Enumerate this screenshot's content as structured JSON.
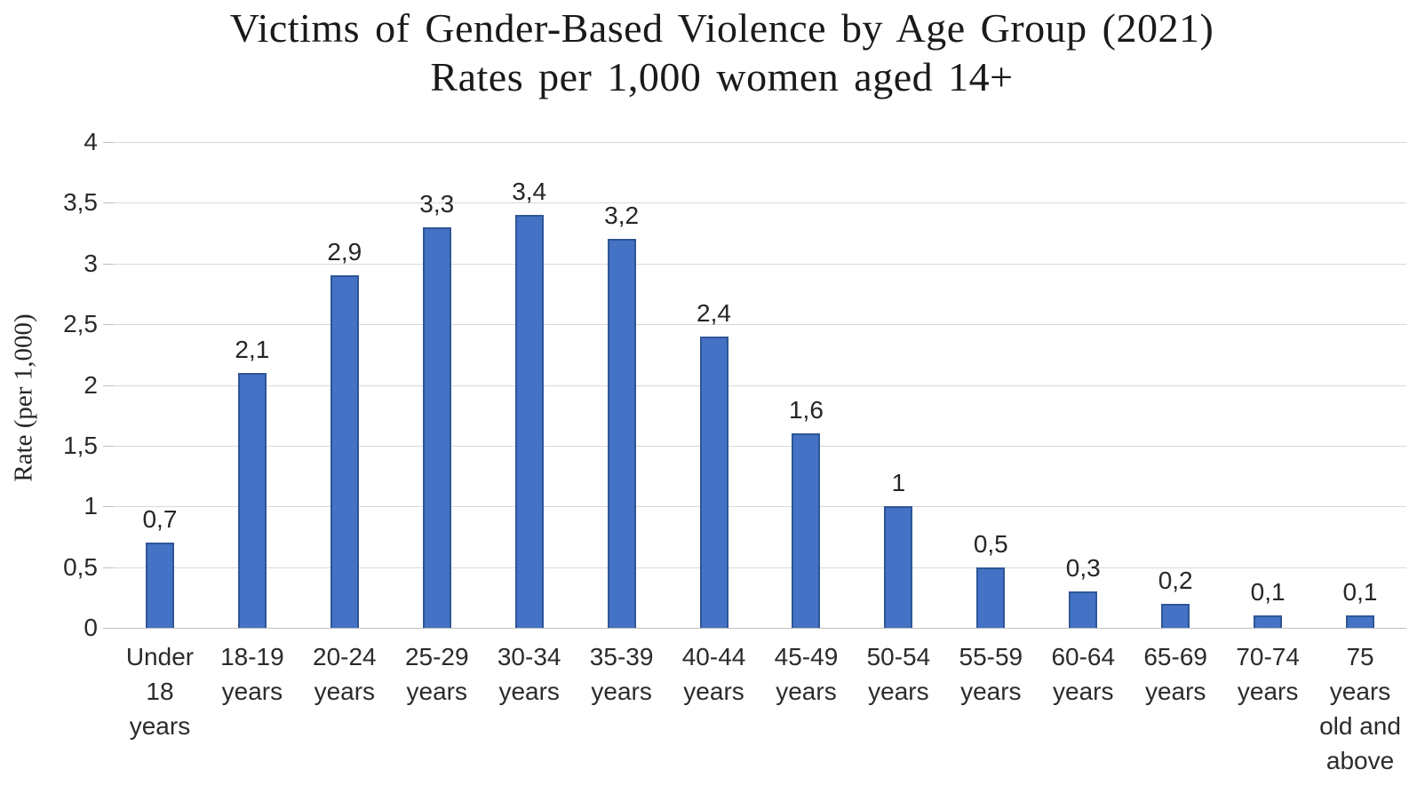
{
  "chart_data": {
    "type": "bar",
    "title": "Victims of Gender-Based Violence by Age Group (2021)",
    "subtitle": "Rates per 1,000 women aged 14+",
    "xlabel": "",
    "ylabel": "Rate (per 1,000)",
    "ylim": [
      0,
      4
    ],
    "grid": true,
    "legend": "none",
    "decimal_separator": ",",
    "categories": [
      "Under 18 years",
      "18-19 years",
      "20-24 years",
      "25-29 years",
      "30-34 years",
      "35-39 years",
      "40-44 years",
      "45-49 years",
      "50-54 years",
      "55-59 years",
      "60-64 years",
      "65-69 years",
      "70-74 years",
      "75 years old and above"
    ],
    "values": [
      0.7,
      2.1,
      2.9,
      3.3,
      3.4,
      3.2,
      2.4,
      1.6,
      1,
      0.5,
      0.3,
      0.2,
      0.1,
      0.1
    ],
    "value_labels": [
      "0,7",
      "2,1",
      "2,9",
      "3,3",
      "3,4",
      "3,2",
      "2,4",
      "1,6",
      "1",
      "0,5",
      "0,3",
      "0,2",
      "0,1",
      "0,1"
    ],
    "x_tick_lines": [
      [
        "Under",
        "18",
        "years"
      ],
      [
        "18-19",
        "years"
      ],
      [
        "20-24",
        "years"
      ],
      [
        "25-29",
        "years"
      ],
      [
        "30-34",
        "years"
      ],
      [
        "35-39",
        "years"
      ],
      [
        "40-44",
        "years"
      ],
      [
        "45-49",
        "years"
      ],
      [
        "50-54",
        "years"
      ],
      [
        "55-59",
        "years"
      ],
      [
        "60-64",
        "years"
      ],
      [
        "65-69",
        "years"
      ],
      [
        "70-74",
        "years"
      ],
      [
        "75",
        "years",
        "old and",
        "above"
      ]
    ],
    "y_ticks": [
      {
        "value": 0,
        "label": "0"
      },
      {
        "value": 0.5,
        "label": "0,5"
      },
      {
        "value": 1,
        "label": "1"
      },
      {
        "value": 1.5,
        "label": "1,5"
      },
      {
        "value": 2,
        "label": "2"
      },
      {
        "value": 2.5,
        "label": "2,5"
      },
      {
        "value": 3,
        "label": "3"
      },
      {
        "value": 3.5,
        "label": "3,5"
      },
      {
        "value": 4,
        "label": "4"
      }
    ],
    "colors": {
      "bar_fill": "#4472C4",
      "bar_border": "#2F5597",
      "gridline": "#D9D9D9",
      "axis_line": "#BFBFBF",
      "tick_label": "#2B2B2B",
      "data_label": "#262626",
      "title": "#1A1A1A"
    }
  }
}
